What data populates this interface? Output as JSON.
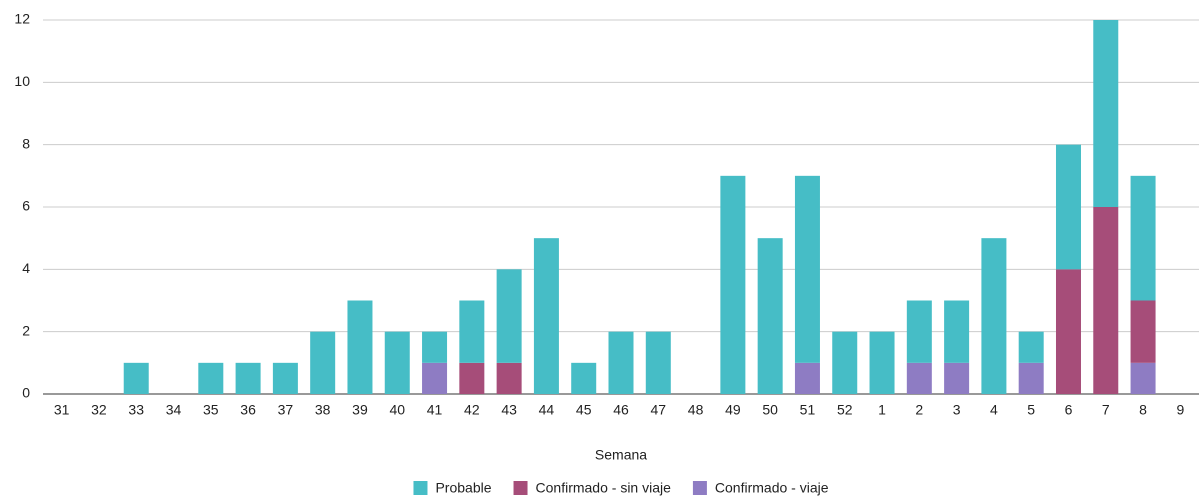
{
  "chart_data": {
    "type": "stacked-bar",
    "x_label": "Semana",
    "categories": [
      "31",
      "32",
      "33",
      "34",
      "35",
      "36",
      "37",
      "38",
      "39",
      "40",
      "41",
      "42",
      "43",
      "44",
      "45",
      "46",
      "47",
      "48",
      "49",
      "50",
      "51",
      "52",
      "1",
      "2",
      "3",
      "4",
      "5",
      "6",
      "7",
      "8",
      "9"
    ],
    "series": [
      {
        "name": "Probable",
        "color": "#46bdc6",
        "values": [
          0,
          0,
          1,
          0,
          1,
          1,
          1,
          2,
          3,
          2,
          1,
          2,
          3,
          5,
          1,
          2,
          2,
          0,
          7,
          5,
          6,
          2,
          2,
          2,
          2,
          5,
          1,
          4,
          6,
          4,
          0
        ]
      },
      {
        "name": "Confirmado - sin viaje",
        "color": "#a64d79",
        "values": [
          0,
          0,
          0,
          0,
          0,
          0,
          0,
          0,
          0,
          0,
          0,
          1,
          1,
          0,
          0,
          0,
          0,
          0,
          0,
          0,
          0,
          0,
          0,
          0,
          0,
          0,
          0,
          4,
          6,
          2,
          0
        ]
      },
      {
        "name": "Confirmado - viaje",
        "color": "#8e7cc3",
        "values": [
          0,
          0,
          0,
          0,
          0,
          0,
          0,
          0,
          0,
          0,
          1,
          0,
          0,
          0,
          0,
          0,
          0,
          0,
          0,
          0,
          1,
          0,
          0,
          1,
          1,
          0,
          1,
          0,
          0,
          1,
          0
        ]
      }
    ],
    "ylim": [
      0,
      12
    ],
    "yticks": [
      0,
      2,
      4,
      6,
      8,
      10,
      12
    ],
    "grid": true,
    "legend": "bottom"
  }
}
